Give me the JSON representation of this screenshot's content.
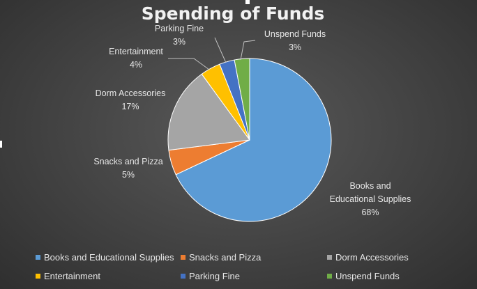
{
  "chart_data": {
    "type": "pie",
    "title": "Spending of Funds",
    "categories": [
      "Books and Educational Supplies",
      "Snacks and Pizza",
      "Dorm Accessories",
      "Entertainment",
      "Parking Fine",
      "Unspend Funds"
    ],
    "values": [
      68,
      5,
      17,
      4,
      3,
      3
    ],
    "unit": "%",
    "data_labels": [
      [
        "Books and",
        "Educational Supplies",
        "68%"
      ],
      [
        "Snacks and Pizza",
        "5%"
      ],
      [
        "Dorm Accessories",
        "17%"
      ],
      [
        "Entertainment",
        "4%"
      ],
      [
        "Parking Fine",
        "3%"
      ],
      [
        "Unspend Funds",
        "3%"
      ]
    ],
    "colors": [
      "#5b9bd5",
      "#ed7d31",
      "#a5a5a5",
      "#ffc000",
      "#4472c4",
      "#70ad47"
    ],
    "legend_position": "bottom",
    "start_angle": "12 o'clock",
    "direction": "clockwise"
  }
}
